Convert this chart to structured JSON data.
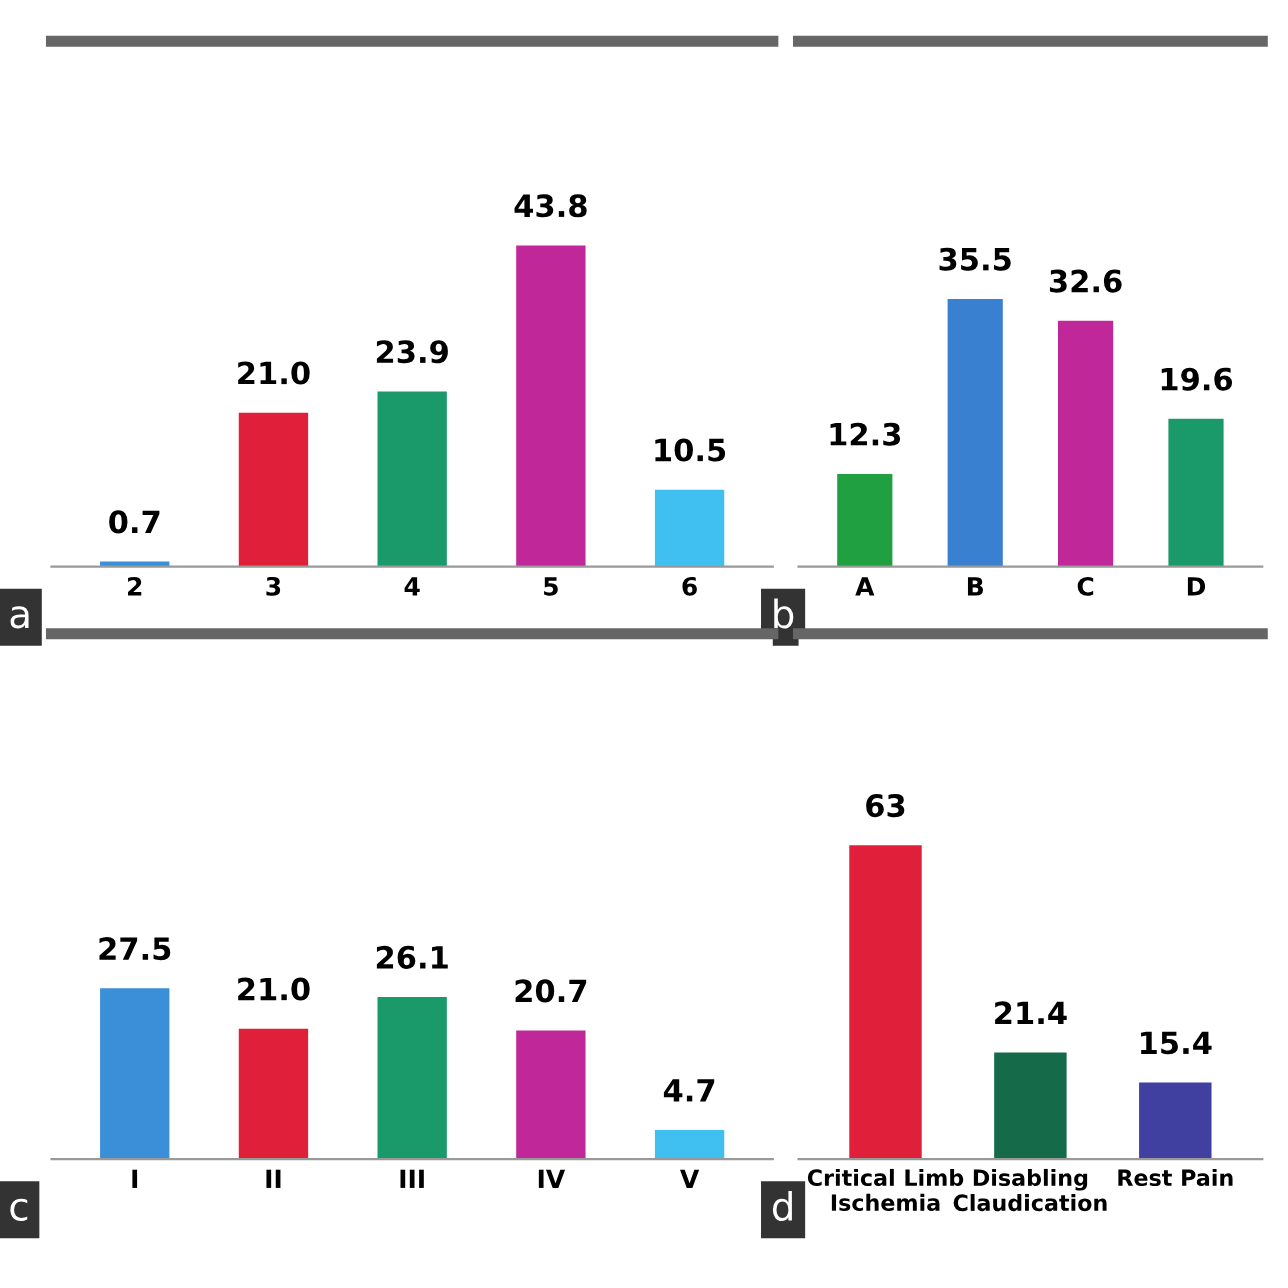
{
  "chart_data": [
    {
      "type": "bar",
      "categories": [
        "2",
        "3",
        "4",
        "5",
        "6"
      ],
      "values": [
        0.7,
        21.0,
        23.9,
        43.8,
        10.5
      ],
      "value_labels": [
        "0.7",
        "21.0",
        "23.9",
        "43.8",
        "10.5"
      ],
      "colors": [
        "#3a8fd8",
        "#e0203a",
        "#1a9a6a",
        "#c0289a",
        "#40c0f0"
      ],
      "ylim": [
        0,
        72
      ],
      "tick_labels": "x",
      "annotations": [
        "a"
      ]
    },
    {
      "type": "bar",
      "categories": [
        "A",
        "B",
        "C",
        "D"
      ],
      "values": [
        12.3,
        35.5,
        32.6,
        19.6
      ],
      "value_labels": [
        "12.3",
        "35.5",
        "32.6",
        "19.6"
      ],
      "colors": [
        "#20a040",
        "#3a80d0",
        "#c0289a",
        "#1a9a6a"
      ],
      "ylim": [
        0,
        70
      ],
      "tick_labels": "x",
      "annotations": [
        "b"
      ]
    },
    {
      "type": "bar",
      "categories": [
        "I",
        "II",
        "III",
        "IV",
        "V"
      ],
      "values": [
        27.5,
        21.0,
        26.1,
        20.7,
        4.7
      ],
      "value_labels": [
        "27.5",
        "21.0",
        "26.1",
        "20.7",
        "4.7"
      ],
      "colors": [
        "#3a8fd8",
        "#e0203a",
        "#1a9a6a",
        "#c0289a",
        "#40c0f0"
      ],
      "ylim": [
        0,
        85
      ],
      "tick_labels": "x",
      "annotations": [
        "c"
      ]
    },
    {
      "type": "bar",
      "categories": [
        "Critical Limb\nIschemia",
        "Disabling\nClaudication",
        "Rest Pain"
      ],
      "values": [
        63,
        21.4,
        15.4
      ],
      "value_labels": [
        "63",
        "21.4",
        "15.4"
      ],
      "colors": [
        "#e0203a",
        "#156a4a",
        "#4040a0"
      ],
      "ylim": [
        0,
        106
      ],
      "tick_labels": "x",
      "annotations": [
        "d"
      ]
    }
  ]
}
